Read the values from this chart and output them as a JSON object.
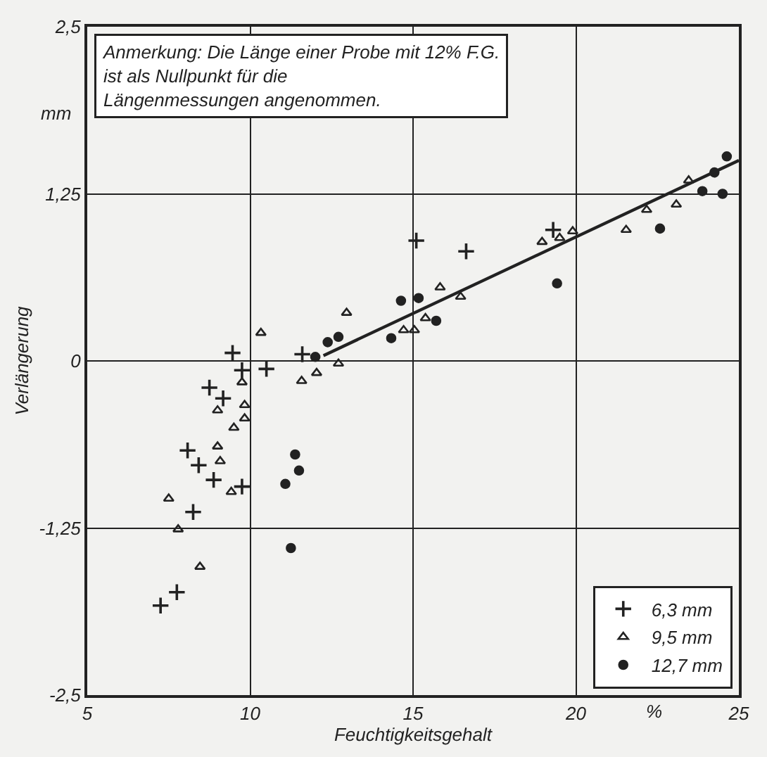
{
  "chart_data": {
    "type": "scatter",
    "xlabel": "Feuchtigkeitsgehalt",
    "ylabel": "Verlängerung",
    "annotations": [
      "Anmerkung: Die Länge einer Probe mit 12% F.G.\nist als Nullpunkt für die\nLängenmessungen angenommen.",
      "mm",
      "%"
    ],
    "xlim": [
      5,
      25
    ],
    "xticks": [
      5,
      10,
      15,
      20,
      25
    ],
    "ylim": [
      -2.5,
      2.5
    ],
    "yticks": [
      {
        "value": -2.5,
        "label": "-2,5"
      },
      {
        "value": -1.25,
        "label": "-1,25"
      },
      0,
      {
        "value": 1.25,
        "label": "1,25"
      },
      {
        "value": 2.5,
        "label": "2,5"
      }
    ],
    "grid": true,
    "legend": "bottom right",
    "series": [
      {
        "name": "6,3 mm",
        "color": "#222222",
        "marker": "cross",
        "x": [
          9.46,
          11.6,
          10.5,
          9.75,
          8.75,
          9.17,
          8.08,
          8.42,
          8.88,
          9.75,
          8.25,
          7.75,
          7.25,
          15.1,
          16.63,
          19.3
        ],
        "values": [
          0.06,
          0.05,
          -0.06,
          -0.07,
          -0.2,
          -0.28,
          -0.67,
          -0.78,
          -0.89,
          -0.94,
          -1.13,
          -1.73,
          -1.83,
          0.9,
          0.82,
          0.98
        ]
      },
      {
        "name": "9,5 mm",
        "color": "#222222",
        "marker": "triangle",
        "x": [
          10.33,
          11.58,
          9.75,
          9.0,
          9.83,
          9.83,
          9.5,
          9.0,
          9.08,
          9.42,
          7.5,
          7.79,
          8.46,
          12.96,
          12.04,
          12.71,
          15.83,
          16.46,
          15.38,
          14.71,
          15.04,
          23.46,
          23.08,
          22.17,
          21.54,
          18.96,
          19.5,
          19.9
        ],
        "values": [
          0.21,
          -0.15,
          -0.16,
          -0.37,
          -0.33,
          -0.43,
          -0.5,
          -0.64,
          -0.75,
          -0.98,
          -1.03,
          -1.26,
          -1.54,
          0.36,
          -0.09,
          -0.02,
          0.55,
          0.48,
          0.32,
          0.23,
          0.23,
          1.35,
          1.17,
          1.13,
          0.98,
          0.89,
          0.92,
          0.97
        ]
      },
      {
        "name": "12,7 mm",
        "color": "#222222",
        "marker": "circle",
        "x": [
          11.38,
          11.5,
          11.08,
          11.25,
          12.0,
          12.38,
          12.71,
          14.63,
          15.17,
          15.71,
          14.33,
          19.42,
          22.58,
          23.88,
          24.5,
          24.25,
          24.63
        ],
        "values": [
          -0.7,
          -0.82,
          -0.92,
          -1.4,
          0.03,
          0.14,
          0.18,
          0.45,
          0.47,
          0.3,
          0.17,
          0.58,
          0.99,
          1.27,
          1.25,
          1.41,
          1.53
        ]
      },
      {
        "type": "line",
        "color": "#222222",
        "marker": "none",
        "x": [
          12.25,
          25
        ],
        "values": [
          0.04,
          1.5
        ]
      }
    ]
  }
}
